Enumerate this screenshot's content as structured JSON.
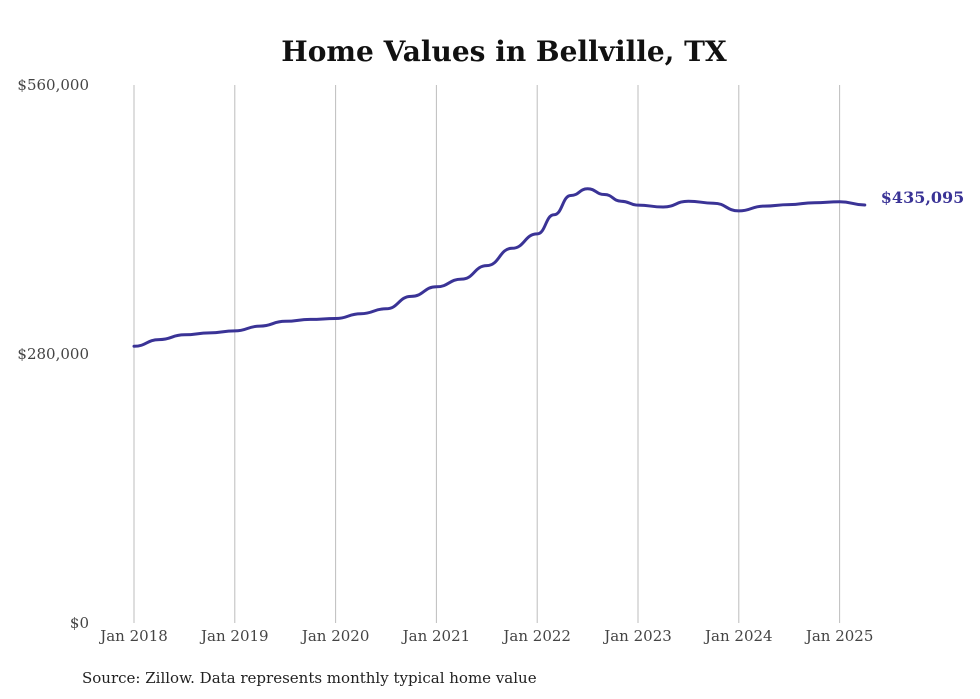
{
  "chart_data": {
    "type": "line",
    "title": "Home Values in Bellville, TX",
    "xlabel": "",
    "ylabel": "",
    "ylim": [
      0,
      560000
    ],
    "y_ticks": [
      "$0",
      "$280,000",
      "$560,000"
    ],
    "x_ticks": [
      "Jan 2018",
      "Jan 2019",
      "Jan 2020",
      "Jan 2021",
      "Jan 2022",
      "Jan 2023",
      "Jan 2024",
      "Jan 2025"
    ],
    "grid": "vertical",
    "line_color": "#3a3396",
    "end_label": "$435,095",
    "series": [
      {
        "x": [
          "2018-01",
          "2018-04",
          "2018-07",
          "2018-10",
          "2019-01",
          "2019-04",
          "2019-07",
          "2019-10",
          "2020-01",
          "2020-04",
          "2020-07",
          "2020-10",
          "2021-01",
          "2021-04",
          "2021-07",
          "2021-10",
          "2022-01",
          "2022-03",
          "2022-05",
          "2022-07",
          "2022-09",
          "2022-11",
          "2023-01",
          "2023-04",
          "2023-07",
          "2023-10",
          "2024-01",
          "2024-04",
          "2024-07",
          "2024-10",
          "2025-01",
          "2025-04"
        ],
        "values": [
          288000,
          295000,
          300000,
          302000,
          304000,
          309000,
          314000,
          316000,
          317000,
          322000,
          327000,
          340000,
          350000,
          358000,
          372000,
          390000,
          405000,
          425000,
          445000,
          452000,
          446000,
          439000,
          435000,
          433000,
          439000,
          437000,
          429000,
          434000,
          435500,
          437500,
          438500,
          435095
        ]
      }
    ]
  },
  "source_note": "Source: Zillow. Data represents monthly typical home value"
}
